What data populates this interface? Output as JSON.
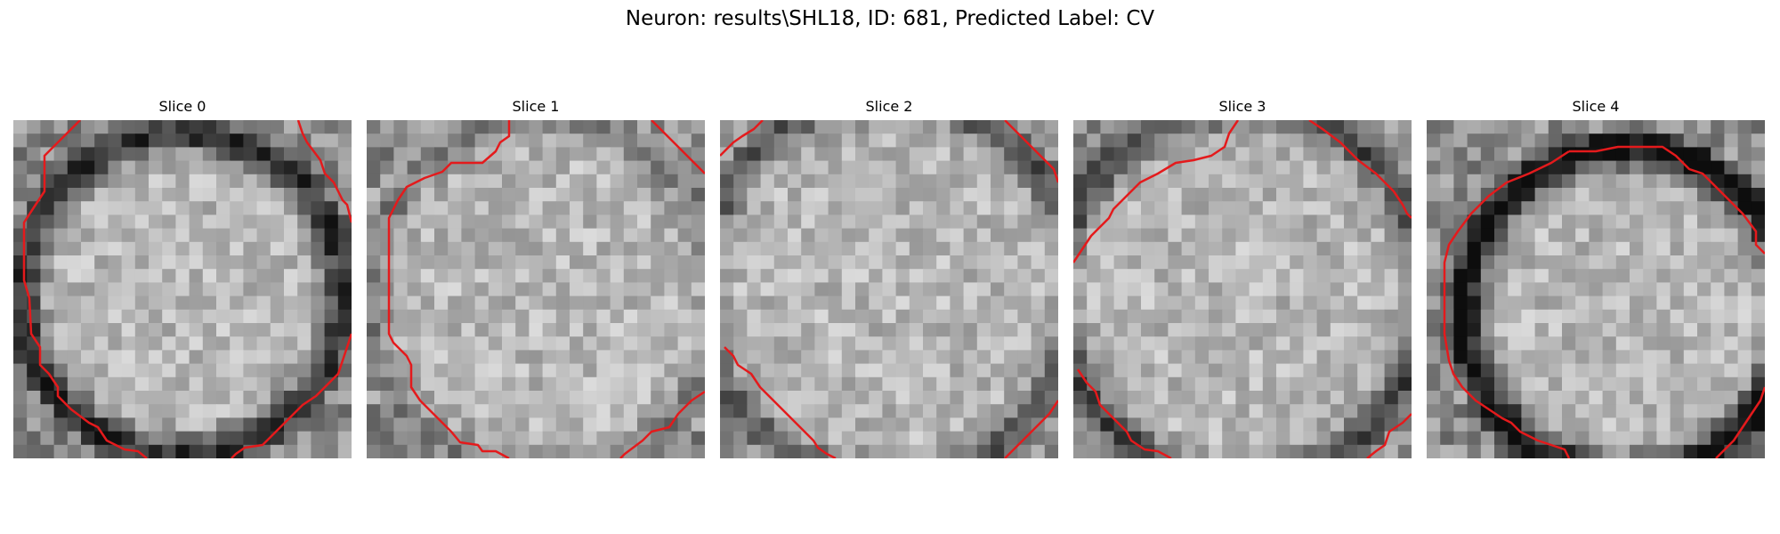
{
  "figure": {
    "title": "Neuron: results\\SHL18, ID: 681, Predicted Label: CV",
    "contour_color": "#e41a1c"
  },
  "panels": [
    {
      "title": "Slice 0"
    },
    {
      "title": "Slice 1"
    },
    {
      "title": "Slice 2"
    },
    {
      "title": "Slice 3"
    },
    {
      "title": "Slice 4"
    }
  ]
}
